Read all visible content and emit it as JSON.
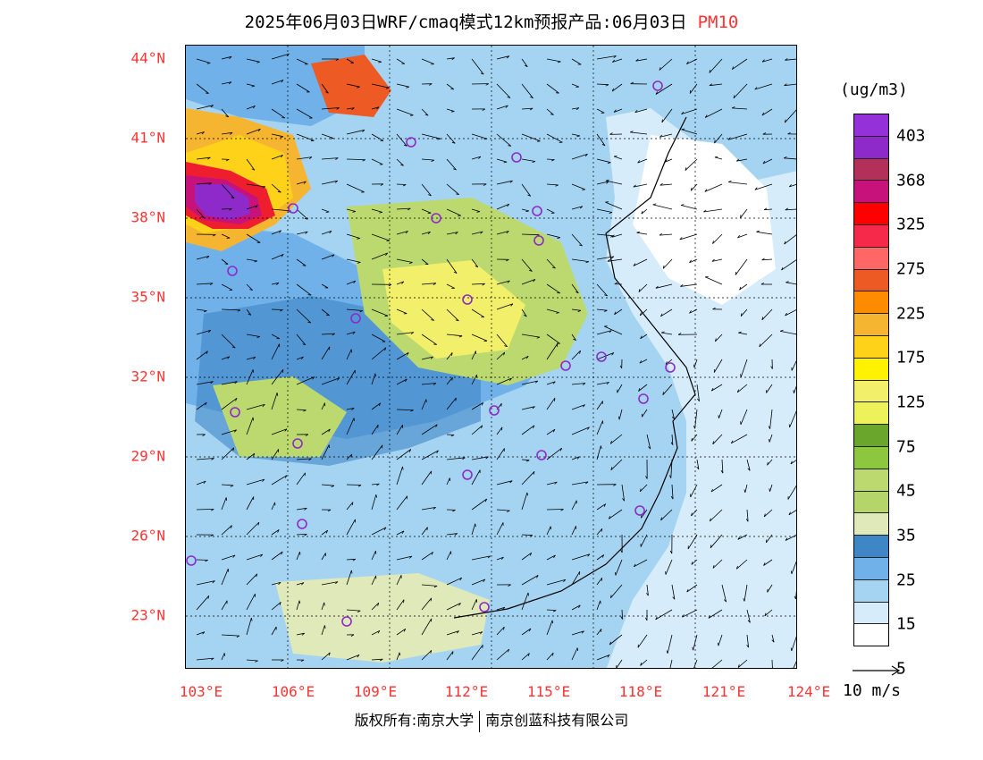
{
  "header": {
    "title": "2025年06月03日WRF/cmaq模式12km预报产品:06月03日",
    "variable": "PM10"
  },
  "map": {
    "lat_labels": [
      "44°N",
      "41°N",
      "38°N",
      "35°N",
      "32°N",
      "29°N",
      "26°N",
      "23°N"
    ],
    "lon_labels": [
      "103°E",
      "106°E",
      "109°E",
      "112°E",
      "115°E",
      "118°E",
      "121°E",
      "124°E"
    ],
    "colors": {
      "land_light": "#a5d4f3",
      "sea_pale": "#d6ecfb",
      "blue_mid": "#6fb1e8",
      "blue_dark": "#3f86c6",
      "green_pale": "#dfe9b9",
      "green": "#bcd96f",
      "yellow": "#f2ef6b",
      "orange": "#f5b530",
      "red": "#ee1e2e",
      "magenta": "#c8127b",
      "purple": "#8e2ac9"
    }
  },
  "legend": {
    "unit": "(ug/m3)",
    "labels": [
      "403",
      "368",
      "325",
      "275",
      "225",
      "175",
      "125",
      "75",
      "45",
      "35",
      "25",
      "15",
      "5"
    ],
    "colors": [
      "#9431d9",
      "#8e2ac9",
      "#b2305a",
      "#c8127b",
      "#ff0000",
      "#f7294b",
      "#ff6666",
      "#ee5a24",
      "#ff8c00",
      "#f5b530",
      "#ffd21a",
      "#fff200",
      "#f2ef6b",
      "#eef25a",
      "#6aa62c",
      "#8dc63f",
      "#bcd96f",
      "#b5d46a",
      "#dfe9b9",
      "#3f86c6",
      "#6fb1e8",
      "#a5d4f3",
      "#d6ecfb",
      "#ffffff"
    ]
  },
  "wind_reference": {
    "label": "10 m/s"
  },
  "footer": {
    "copyright_left": "版权所有:南京大学",
    "copyright_right": "南京创蓝科技有限公司"
  }
}
